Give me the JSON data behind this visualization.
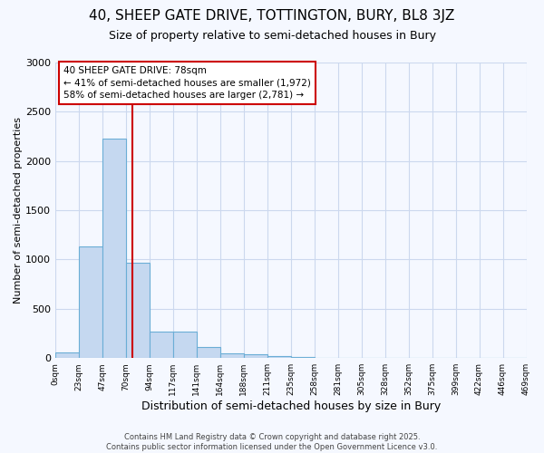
{
  "title_line1": "40, SHEEP GATE DRIVE, TOTTINGTON, BURY, BL8 3JZ",
  "title_line2": "Size of property relative to semi-detached houses in Bury",
  "xlabel": "Distribution of semi-detached houses by size in Bury",
  "ylabel": "Number of semi-detached properties",
  "bar_values": [
    60,
    1130,
    2230,
    970,
    270,
    270,
    110,
    50,
    35,
    20,
    15,
    0,
    0,
    0,
    0,
    0,
    0,
    0,
    0,
    0
  ],
  "categories": [
    "0sqm",
    "23sqm",
    "47sqm",
    "70sqm",
    "94sqm",
    "117sqm",
    "141sqm",
    "164sqm",
    "188sqm",
    "211sqm",
    "235sqm",
    "258sqm",
    "281sqm",
    "305sqm",
    "328sqm",
    "352sqm",
    "375sqm",
    "399sqm",
    "422sqm",
    "446sqm",
    "469sqm"
  ],
  "bar_color": "#c5d8f0",
  "bar_edge_color": "#6baed6",
  "fig_bg_color": "#f5f8ff",
  "plot_bg_color": "#f5f8ff",
  "grid_color": "#ccd8ee",
  "annotation_text": "40 SHEEP GATE DRIVE: 78sqm\n← 41% of semi-detached houses are smaller (1,972)\n58% of semi-detached houses are larger (2,781) →",
  "annotation_box_facecolor": "#ffffff",
  "annotation_box_edgecolor": "#cc0000",
  "vline_color": "#cc0000",
  "vline_x": 3.27,
  "footer_line1": "Contains HM Land Registry data © Crown copyright and database right 2025.",
  "footer_line2": "Contains public sector information licensed under the Open Government Licence v3.0.",
  "ylim": [
    0,
    3000
  ],
  "title1_fontsize": 11,
  "title2_fontsize": 9,
  "ylabel_fontsize": 8,
  "xlabel_fontsize": 9
}
